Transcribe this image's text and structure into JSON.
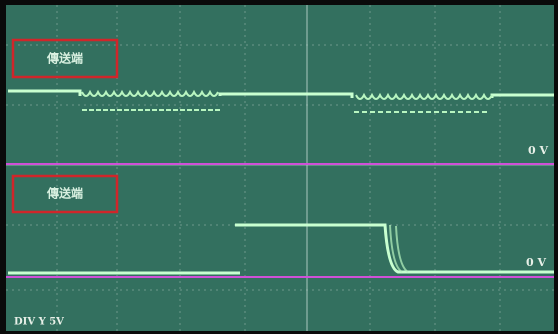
{
  "channels": [
    {
      "label": "傳送端",
      "zero_label": "0 V"
    },
    {
      "label": "傳送端",
      "zero_label": "0 V"
    }
  ],
  "scale_label": "DIV Y 5V"
}
